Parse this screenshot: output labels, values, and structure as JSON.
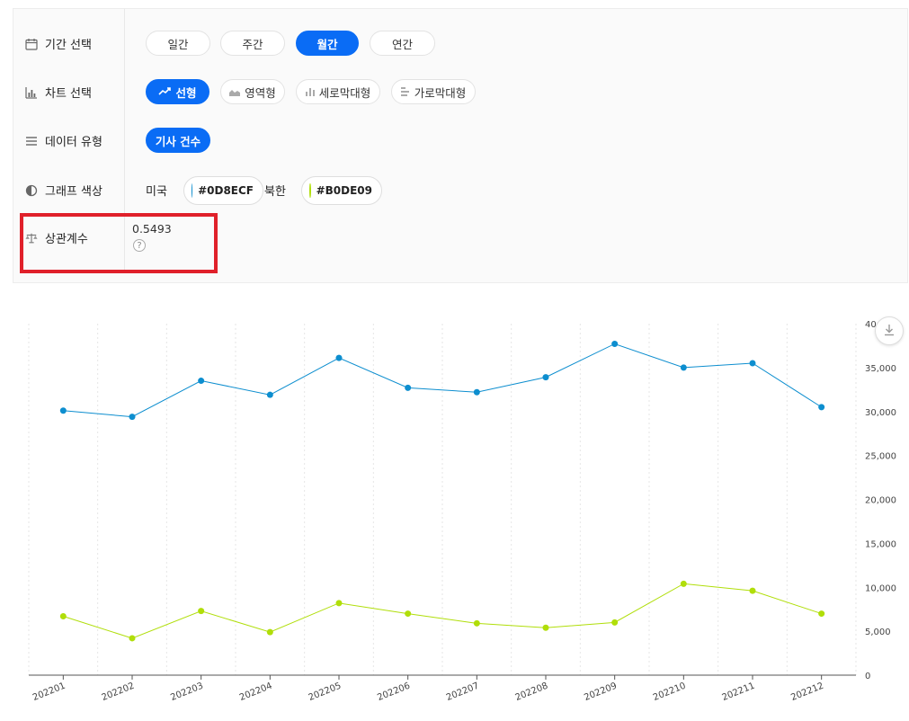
{
  "controls": {
    "period": {
      "label": "기간 선택",
      "options": [
        "일간",
        "주간",
        "월간",
        "연간"
      ],
      "selected": "월간"
    },
    "chart": {
      "label": "차트 선택",
      "options": [
        "선형",
        "영역형",
        "세로막대형",
        "가로막대형"
      ],
      "selected": "선형"
    },
    "data_type": {
      "label": "데이터 유형",
      "options": [
        "기사 건수"
      ],
      "selected": "기사 건수"
    },
    "graph_color": {
      "label": "그래프 색상",
      "series": [
        {
          "name": "미국",
          "color_label": "#0D8ECF",
          "color": "#0D8ECF"
        },
        {
          "name": "북한",
          "color_label": "#B0DE09",
          "color": "#B0DE09"
        }
      ]
    },
    "correlation": {
      "label": "상관계수",
      "value": "0.5493",
      "help": "?"
    }
  },
  "chart_data": {
    "type": "line",
    "x": [
      "202201",
      "202202",
      "202203",
      "202204",
      "202205",
      "202206",
      "202207",
      "202208",
      "202209",
      "202210",
      "202211",
      "202212"
    ],
    "series": [
      {
        "name": "미국",
        "color": "#0D8ECF",
        "values": [
          30100,
          29400,
          33500,
          31900,
          36100,
          32700,
          32200,
          33900,
          37700,
          35000,
          35500,
          30500
        ]
      },
      {
        "name": "북한",
        "color": "#B0DE09",
        "values": [
          6700,
          4200,
          7300,
          4900,
          8200,
          7000,
          5900,
          5400,
          6000,
          10400,
          9600,
          7000
        ]
      }
    ],
    "y_ticks": [
      "0",
      "5,000",
      "10,000",
      "15,000",
      "20,000",
      "25,000",
      "30,000",
      "35,000",
      "40,000"
    ],
    "ylim": [
      0,
      40000
    ],
    "y_axis_side": "right",
    "grid": "vertical dashed",
    "legend": "none"
  }
}
